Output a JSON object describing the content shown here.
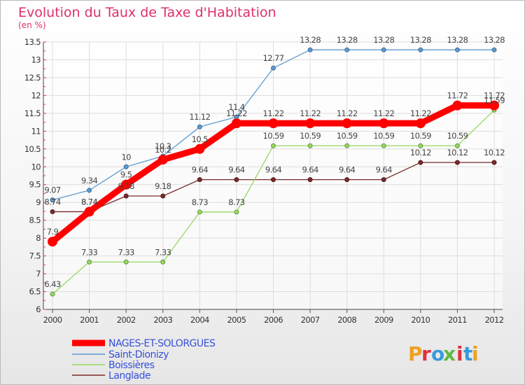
{
  "chart_data": {
    "type": "line",
    "title": "Evolution du Taux de Taxe d'Habitation",
    "subtitle": "(en %)",
    "x": [
      "2000",
      "2001",
      "2002",
      "2003",
      "2004",
      "2005",
      "2006",
      "2007",
      "2008",
      "2009",
      "2010",
      "2011",
      "2012"
    ],
    "yticks": [
      "6",
      "6.5",
      "7",
      "7.5",
      "8",
      "8.5",
      "9",
      "9.5",
      "10",
      "10.5",
      "11",
      "11.5",
      "12",
      "12.5",
      "13",
      "13.5"
    ],
    "ylim": [
      6,
      13.5
    ],
    "grid": true,
    "legend_position": "bottom-left",
    "series": [
      {
        "name": "NAGES-ET-SOLORGUES",
        "color": "#ff0000",
        "values": [
          7.9,
          8.74,
          9.5,
          10.2,
          10.5,
          11.22,
          11.22,
          11.22,
          11.22,
          11.22,
          11.22,
          11.72,
          11.72
        ],
        "labels": [
          "7.9",
          "8.74",
          "9.5",
          "10.2",
          "10.5",
          "11.22",
          "11.22",
          "11.22",
          "11.22",
          "11.22",
          "11.22",
          "11.72",
          "11.72"
        ]
      },
      {
        "name": "Saint-Dionizy",
        "color": "#5c9bd1",
        "values": [
          9.07,
          9.34,
          10,
          10.3,
          11.12,
          11.4,
          12.77,
          13.28,
          13.28,
          13.28,
          13.28,
          13.28,
          13.28
        ],
        "labels": [
          "9.07",
          "9.34",
          "10",
          "10.3",
          "11.12",
          "11.4",
          "12.77",
          "13.28",
          "13.28",
          "13.28",
          "13.28",
          "13.28",
          "13.28"
        ]
      },
      {
        "name": "Boissières",
        "color": "#96d860",
        "values": [
          6.43,
          7.33,
          7.33,
          7.33,
          8.73,
          8.73,
          10.59,
          10.59,
          10.59,
          10.59,
          10.59,
          10.59,
          11.59
        ],
        "labels": [
          "6.43",
          "7.33",
          "7.33",
          "7.33",
          "8.73",
          "8.73",
          "10.59",
          "10.59",
          "10.59",
          "10.59",
          "10.59",
          "10.59",
          "11.59"
        ]
      },
      {
        "name": "Langlade",
        "color": "#7a2a2a",
        "values": [
          8.74,
          8.74,
          9.18,
          9.18,
          9.64,
          9.64,
          9.64,
          9.64,
          9.64,
          9.64,
          10.12,
          10.12,
          10.12
        ],
        "labels": [
          "8.74",
          "8.74",
          "9.18",
          "9.18",
          "9.64",
          "9.64",
          "9.64",
          "9.64",
          "9.64",
          "9.64",
          "10.12",
          "10.12",
          "10.12"
        ]
      }
    ]
  },
  "branding": {
    "text": "Proxiti",
    "colors": [
      "#f0a020",
      "#e03040",
      "#3a9ad8",
      "#60b840",
      "#e03040",
      "#3a9ad8",
      "#f0a020"
    ]
  }
}
